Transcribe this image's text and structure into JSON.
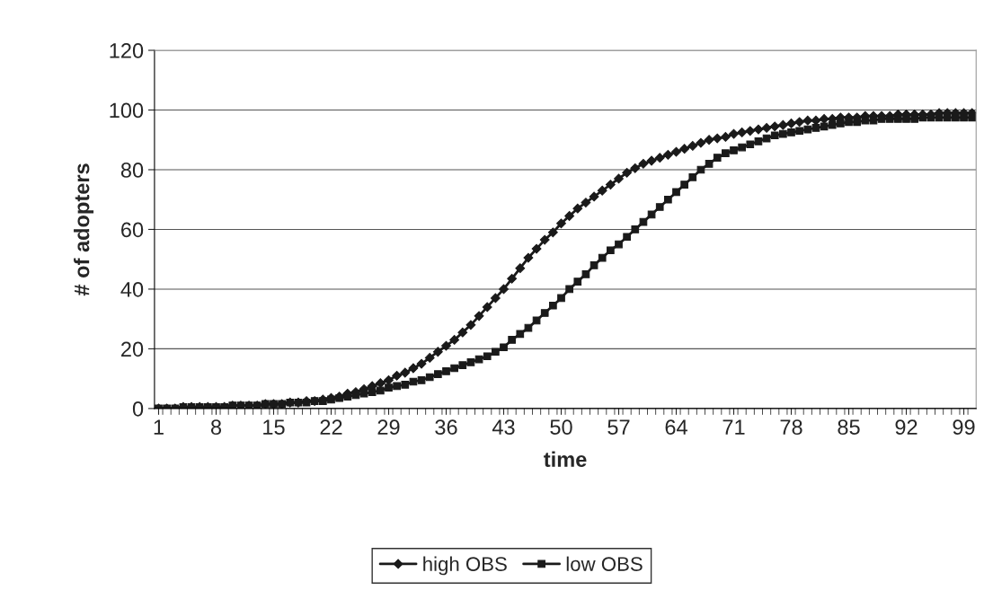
{
  "chart_data": {
    "type": "line",
    "xlabel": "time",
    "ylabel": "# of adopters",
    "categories": [
      "1",
      null,
      null,
      null,
      null,
      null,
      null,
      "8",
      null,
      null,
      null,
      null,
      null,
      null,
      "15",
      null,
      null,
      null,
      null,
      null,
      null,
      "22",
      null,
      null,
      null,
      null,
      null,
      null,
      "29",
      null,
      null,
      null,
      null,
      null,
      null,
      "36",
      null,
      null,
      null,
      null,
      null,
      null,
      "43",
      null,
      null,
      null,
      null,
      null,
      null,
      "50",
      null,
      null,
      null,
      null,
      null,
      null,
      "57",
      null,
      null,
      null,
      null,
      null,
      null,
      "64",
      null,
      null,
      null,
      null,
      null,
      null,
      "71",
      null,
      null,
      null,
      null,
      null,
      null,
      "78",
      null,
      null,
      null,
      null,
      null,
      null,
      "85",
      null,
      null,
      null,
      null,
      null,
      null,
      "92",
      null,
      null,
      null,
      null,
      null,
      null,
      "99",
      null
    ],
    "series": [
      {
        "name": "high OBS",
        "color": "#1a1a1a",
        "marker": "diamond",
        "values": [
          0,
          0,
          0,
          0.5,
          0.5,
          0.5,
          0.5,
          0.5,
          0.5,
          1,
          1,
          1,
          1,
          1.5,
          1.5,
          1.5,
          2,
          2,
          2.5,
          2.5,
          3,
          3.5,
          4,
          5,
          5.5,
          6.5,
          7.5,
          8.5,
          9.5,
          11,
          12,
          13.5,
          15,
          17,
          19,
          21,
          23,
          25.5,
          28,
          31,
          34,
          37,
          40,
          43.5,
          47,
          50.5,
          53.5,
          56.5,
          59,
          62,
          64.5,
          67,
          69,
          71,
          73,
          75,
          77,
          79,
          80.5,
          82,
          83,
          84,
          85,
          86,
          87,
          88,
          89,
          90,
          90.5,
          91,
          92,
          92.5,
          93,
          93.5,
          94,
          94.5,
          95,
          95.5,
          96,
          96.5,
          96.5,
          97,
          97,
          97.5,
          97.5,
          97.5,
          98,
          98,
          98,
          98,
          98.5,
          98.5,
          98.5,
          98.5,
          98.5,
          99,
          99,
          99,
          99,
          99
        ]
      },
      {
        "name": "low OBS",
        "color": "#1a1a1a",
        "marker": "square",
        "values": [
          0,
          0,
          0,
          0.5,
          0.5,
          0.5,
          0.5,
          0.5,
          0.5,
          1,
          1,
          1,
          1,
          1.5,
          1.5,
          1.5,
          2,
          2,
          2,
          2.5,
          2.5,
          3,
          3.5,
          4,
          4.5,
          5,
          5.5,
          6,
          7,
          7.5,
          8,
          9,
          9.5,
          10.5,
          11.5,
          12.5,
          13.5,
          14.5,
          15.5,
          16.5,
          17.5,
          19,
          20.5,
          23,
          25,
          27,
          29.5,
          32,
          34.5,
          37,
          40,
          42.5,
          45,
          48,
          50.5,
          53,
          55,
          57.5,
          60,
          62.5,
          65,
          67.5,
          70,
          72.5,
          75,
          77.5,
          80,
          82,
          84,
          85.5,
          86.5,
          87.5,
          88.5,
          89.5,
          90.5,
          91.5,
          92,
          92.5,
          93,
          93.5,
          94,
          94.5,
          95,
          95.5,
          96,
          96,
          96.5,
          96.5,
          97,
          97,
          97,
          97,
          97,
          97.5,
          97.5,
          97.5,
          97.5,
          97.5,
          97.5,
          97.5
        ]
      }
    ],
    "ylim": [
      0,
      120
    ],
    "yticks": [
      0,
      20,
      40,
      60,
      80,
      100,
      120
    ],
    "grid": "y",
    "legend": "bottom",
    "line_style": "solid"
  }
}
